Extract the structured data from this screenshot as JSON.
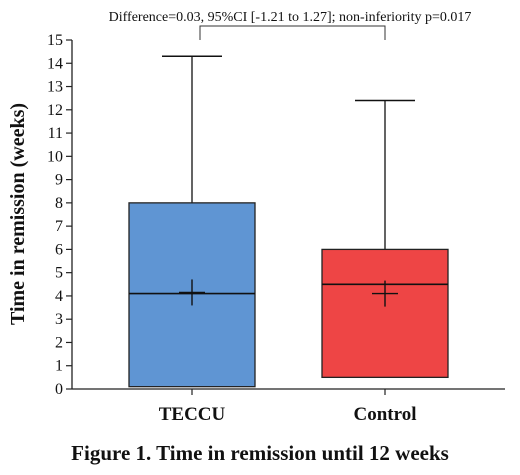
{
  "chart_data": {
    "type": "box",
    "categories": [
      "TECCU",
      "Control"
    ],
    "boxes": [
      {
        "category": "TECCU",
        "min": 0.1,
        "q1": 0.1,
        "median": 4.1,
        "mean": 4.15,
        "q3": 8.0,
        "max": 14.3,
        "color": "#5f95d3"
      },
      {
        "category": "Control",
        "min": 0.5,
        "q1": 0.5,
        "median": 4.5,
        "mean": 4.1,
        "q3": 6.0,
        "max": 12.4,
        "color": "#ee4545"
      }
    ],
    "ylabel": "Time in remission (weeks)",
    "ylim": [
      0,
      15
    ],
    "yticks": [
      "0",
      "1",
      "2",
      "3",
      "4",
      "5",
      "6",
      "7",
      "8",
      "9",
      "10",
      "11",
      "12",
      "13",
      "14",
      "15"
    ],
    "annotation": "Difference=0.03, 95%CI [-1.21 to 1.27]; non-inferiority p=0.017",
    "caption": "Figure 1. Time in remission until 12 weeks",
    "grid": false,
    "legend": "none"
  }
}
